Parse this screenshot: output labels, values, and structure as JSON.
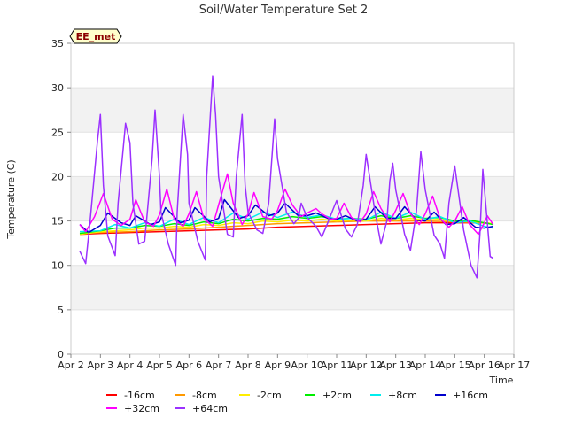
{
  "chart_data": {
    "type": "line",
    "title": "Soil/Water Temperature Set 2",
    "xlabel": "Time",
    "ylabel": "Temperature (C)",
    "badge": "EE_met",
    "x_domain": [
      2.0,
      17.0
    ],
    "xlim_labels": [
      "Apr 2",
      "Apr 17"
    ],
    "ylim": [
      0,
      35
    ],
    "yticks": [
      0,
      5,
      10,
      15,
      20,
      25,
      30,
      35
    ],
    "xticks": [
      {
        "x": 2,
        "label": "Apr 2"
      },
      {
        "x": 3,
        "label": "Apr 3"
      },
      {
        "x": 4,
        "label": "Apr 4"
      },
      {
        "x": 5,
        "label": "Apr 5"
      },
      {
        "x": 6,
        "label": "Apr 6"
      },
      {
        "x": 7,
        "label": "Apr 7"
      },
      {
        "x": 8,
        "label": "Apr 8"
      },
      {
        "x": 9,
        "label": "Apr 9"
      },
      {
        "x": 10,
        "label": "Apr 10"
      },
      {
        "x": 11,
        "label": "Apr 11"
      },
      {
        "x": 12,
        "label": "Apr 12"
      },
      {
        "x": 13,
        "label": "Apr 13"
      },
      {
        "x": 14,
        "label": "Apr 14"
      },
      {
        "x": 15,
        "label": "Apr 15"
      },
      {
        "x": 16,
        "label": "Apr 16"
      },
      {
        "x": 17,
        "label": "Apr 17"
      }
    ],
    "grid": "alternating horizontal bands",
    "legend_position": "bottom",
    "series": [
      {
        "name": "-16cm",
        "color": "#ff0000",
        "x": [
          2.3,
          3,
          4,
          5,
          6,
          7,
          8,
          9,
          10,
          11,
          12,
          13,
          14,
          15,
          16,
          16.3
        ],
        "y": [
          13.5,
          13.6,
          13.7,
          13.8,
          13.9,
          14.0,
          14.1,
          14.3,
          14.4,
          14.5,
          14.6,
          14.7,
          14.8,
          14.8,
          14.8,
          14.7
        ]
      },
      {
        "name": "-8cm",
        "color": "#ff9900",
        "x": [
          2.3,
          3,
          4,
          5,
          6,
          7,
          8,
          9,
          10,
          11,
          12,
          13,
          14,
          15,
          16,
          16.3
        ],
        "y": [
          13.6,
          13.7,
          13.8,
          14.0,
          14.1,
          14.3,
          14.5,
          14.7,
          14.8,
          14.9,
          15.0,
          15.0,
          15.0,
          14.9,
          14.8,
          14.7
        ]
      },
      {
        "name": "-2cm",
        "color": "#ffee00",
        "x": [
          2.3,
          3,
          3.5,
          4,
          4.5,
          5,
          5.5,
          6,
          6.5,
          7,
          7.5,
          8,
          8.5,
          9,
          9.5,
          10,
          10.5,
          11,
          11.5,
          12,
          12.5,
          13,
          13.5,
          14,
          14.5,
          15,
          15.5,
          16,
          16.3
        ],
        "y": [
          13.5,
          13.8,
          13.9,
          14.0,
          14.2,
          14.2,
          14.4,
          14.3,
          14.6,
          14.5,
          14.8,
          14.7,
          15.0,
          14.9,
          15.1,
          15.0,
          15.2,
          15.0,
          15.1,
          15.0,
          15.3,
          15.1,
          15.3,
          15.1,
          15.2,
          14.9,
          15.0,
          14.8,
          14.7
        ]
      },
      {
        "name": "+2cm",
        "color": "#00ee00",
        "x": [
          2.3,
          3,
          3.5,
          4,
          4.5,
          5,
          5.5,
          6,
          6.5,
          7,
          7.5,
          8,
          8.5,
          9,
          9.5,
          10,
          10.5,
          11,
          11.5,
          12,
          12.5,
          13,
          13.5,
          14,
          14.5,
          15,
          15.5,
          16,
          16.3
        ],
        "y": [
          13.6,
          13.9,
          14.2,
          14.2,
          14.5,
          14.4,
          14.7,
          14.5,
          14.9,
          14.7,
          15.2,
          15.0,
          15.3,
          15.2,
          15.5,
          15.3,
          15.5,
          15.2,
          15.3,
          15.2,
          15.6,
          15.3,
          15.6,
          15.3,
          15.4,
          15.0,
          15.1,
          14.8,
          14.6
        ]
      },
      {
        "name": "+8cm",
        "color": "#00eeee",
        "x": [
          2.3,
          3,
          3.5,
          4,
          4.5,
          5,
          5.5,
          6,
          6.5,
          7,
          7.5,
          8,
          8.5,
          9,
          9.5,
          10,
          10.5,
          11,
          11.5,
          12,
          12.5,
          13,
          13.5,
          14,
          14.5,
          15,
          15.5,
          16,
          16.3
        ],
        "y": [
          13.8,
          13.9,
          14.6,
          14.2,
          14.8,
          14.4,
          15.2,
          14.6,
          15.4,
          14.8,
          15.9,
          15.2,
          16.0,
          15.4,
          16.0,
          15.4,
          15.7,
          15.2,
          15.3,
          15.1,
          16.0,
          15.3,
          16.0,
          15.2,
          15.5,
          14.8,
          15.0,
          14.4,
          14.2
        ]
      },
      {
        "name": "+16cm",
        "color": "#0000cc",
        "x": [
          2.3,
          2.6,
          3.0,
          3.25,
          3.7,
          4.0,
          4.2,
          4.7,
          5.0,
          5.2,
          5.7,
          6.0,
          6.2,
          6.7,
          7.0,
          7.2,
          7.7,
          8.0,
          8.25,
          8.7,
          9.0,
          9.25,
          9.7,
          10.0,
          10.3,
          10.7,
          11.0,
          11.3,
          11.7,
          12.0,
          12.3,
          12.7,
          13.0,
          13.3,
          13.7,
          14.0,
          14.3,
          14.7,
          15.0,
          15.3,
          15.7,
          16.0,
          16.3
        ],
        "y": [
          14.6,
          13.7,
          14.5,
          15.9,
          14.8,
          14.5,
          15.6,
          14.6,
          14.9,
          16.5,
          14.8,
          15.1,
          16.5,
          14.9,
          15.3,
          17.4,
          15.3,
          15.6,
          16.8,
          15.6,
          15.9,
          17.0,
          15.6,
          15.6,
          15.9,
          15.3,
          15.2,
          15.6,
          15.0,
          15.2,
          16.6,
          15.3,
          15.3,
          16.6,
          15.1,
          15.0,
          16.0,
          14.6,
          14.7,
          15.4,
          14.3,
          14.2,
          14.4
        ]
      },
      {
        "name": "+32cm",
        "color": "#ff00ff",
        "x": [
          2.3,
          2.5,
          2.8,
          3.1,
          3.4,
          3.7,
          4.0,
          4.2,
          4.5,
          4.8,
          5.0,
          5.25,
          5.5,
          5.8,
          6.0,
          6.25,
          6.5,
          6.8,
          7.0,
          7.3,
          7.5,
          7.8,
          8.0,
          8.2,
          8.5,
          8.8,
          9.0,
          9.25,
          9.5,
          9.8,
          10.0,
          10.3,
          10.5,
          10.8,
          11.0,
          11.25,
          11.5,
          11.8,
          12.0,
          12.25,
          12.5,
          12.8,
          13.0,
          13.25,
          13.5,
          13.8,
          14.0,
          14.25,
          14.5,
          14.8,
          15.0,
          15.25,
          15.5,
          15.8,
          16.0,
          16.1,
          16.3
        ],
        "y": [
          14.6,
          13.8,
          15.5,
          18.1,
          15.2,
          14.5,
          15.2,
          17.4,
          14.9,
          14.4,
          15.7,
          18.6,
          15.2,
          14.4,
          15.8,
          18.3,
          15.3,
          14.4,
          16.8,
          20.3,
          17.0,
          14.6,
          15.8,
          18.2,
          15.5,
          15.2,
          16.2,
          18.6,
          16.8,
          15.5,
          15.9,
          16.4,
          15.8,
          15.2,
          15.3,
          17.0,
          15.4,
          14.9,
          15.8,
          18.3,
          16.4,
          14.9,
          16.2,
          18.1,
          15.8,
          14.6,
          15.8,
          17.8,
          15.3,
          14.3,
          15.0,
          16.6,
          14.6,
          13.5,
          14.8,
          15.6,
          14.6
        ]
      },
      {
        "name": "+64cm",
        "color": "#9b30ff",
        "x": [
          2.3,
          2.5,
          2.65,
          2.9,
          3.0,
          3.1,
          3.25,
          3.5,
          3.6,
          3.85,
          4.0,
          4.1,
          4.3,
          4.5,
          4.75,
          4.85,
          5.0,
          5.05,
          5.3,
          5.55,
          5.6,
          5.8,
          5.95,
          6.0,
          6.3,
          6.55,
          6.6,
          6.8,
          6.9,
          7.0,
          7.3,
          7.5,
          7.6,
          7.8,
          7.9,
          8.0,
          8.3,
          8.5,
          8.7,
          8.9,
          9.0,
          9.3,
          9.55,
          9.7,
          9.8,
          10.0,
          10.3,
          10.5,
          10.7,
          10.9,
          11.0,
          11.3,
          11.5,
          11.7,
          11.9,
          12.0,
          12.3,
          12.5,
          12.7,
          12.8,
          12.9,
          13.0,
          13.3,
          13.5,
          13.7,
          13.85,
          14.0,
          14.3,
          14.5,
          14.65,
          14.8,
          15.0,
          15.3,
          15.55,
          15.75,
          15.85,
          15.95,
          16.2,
          16.3
        ],
        "y": [
          11.6,
          10.2,
          15.0,
          24.0,
          27.0,
          19.0,
          13.3,
          11.1,
          17.0,
          26.0,
          23.8,
          17.0,
          12.4,
          12.7,
          22.0,
          27.5,
          20.0,
          16.0,
          12.4,
          10.0,
          16.0,
          27.0,
          22.5,
          17.0,
          12.7,
          10.6,
          20.0,
          31.3,
          27.0,
          20.0,
          13.5,
          13.2,
          20.0,
          27.0,
          19.0,
          16.0,
          14.0,
          13.6,
          17.0,
          26.5,
          22.0,
          16.0,
          14.7,
          15.3,
          17.0,
          15.4,
          14.4,
          13.2,
          14.8,
          16.5,
          17.3,
          14.1,
          13.2,
          14.6,
          19.0,
          22.5,
          16.0,
          12.4,
          15.0,
          19.5,
          21.5,
          18.5,
          13.5,
          11.7,
          16.0,
          22.8,
          18.5,
          13.4,
          12.4,
          10.8,
          17.0,
          21.2,
          14.0,
          10.0,
          8.6,
          13.5,
          20.8,
          11.0,
          10.8
        ]
      }
    ]
  }
}
